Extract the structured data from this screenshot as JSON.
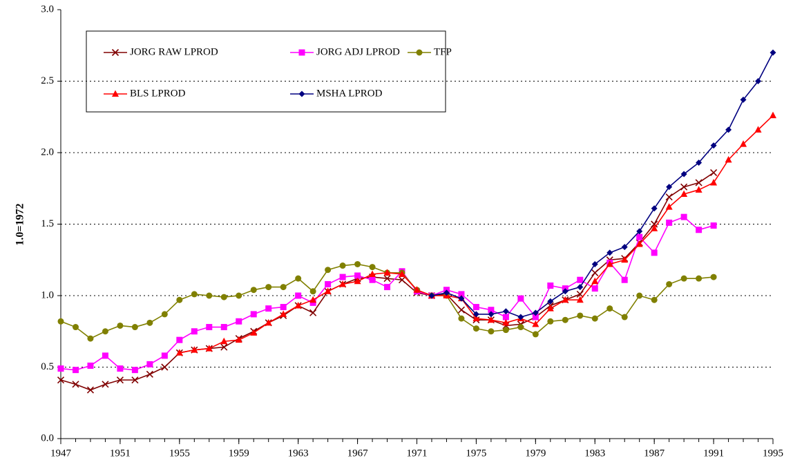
{
  "chart_data": {
    "type": "line",
    "y_label": "1.0=1972",
    "x": [
      1947,
      1948,
      1949,
      1950,
      1951,
      1952,
      1953,
      1954,
      1955,
      1956,
      1957,
      1958,
      1959,
      1960,
      1961,
      1962,
      1963,
      1964,
      1965,
      1966,
      1967,
      1968,
      1969,
      1970,
      1971,
      1972,
      1973,
      1974,
      1975,
      1976,
      1977,
      1978,
      1979,
      1980,
      1981,
      1982,
      1983,
      1984,
      1985,
      1986,
      1987,
      1988,
      1989,
      1990,
      1991,
      1992,
      1993,
      1994,
      1995
    ],
    "xlim": [
      1947,
      1995
    ],
    "xticks": [
      1947,
      1951,
      1955,
      1959,
      1963,
      1967,
      1971,
      1975,
      1979,
      1983,
      1987,
      1991,
      1995
    ],
    "ylim": [
      0,
      3
    ],
    "yticks": [
      {
        "value": 0,
        "label": "0.0"
      },
      {
        "value": 0.5,
        "label": "0.5"
      },
      {
        "value": 1,
        "label": "1.0"
      },
      {
        "value": 1.5,
        "label": "1.5"
      },
      {
        "value": 2,
        "label": "2.0"
      },
      {
        "value": 2.5,
        "label": "2.5"
      },
      {
        "value": 3,
        "label": "3.0"
      }
    ],
    "grid": true,
    "series": [
      {
        "name": "JORG RAW LPROD",
        "color": "#800000",
        "marker": "x",
        "values": [
          0.41,
          0.38,
          0.34,
          0.38,
          0.41,
          0.41,
          0.45,
          0.5,
          0.6,
          0.62,
          0.63,
          0.64,
          0.7,
          0.75,
          0.81,
          0.86,
          0.93,
          0.88,
          1.03,
          1.08,
          1.12,
          1.13,
          1.12,
          1.11,
          1.02,
          1.0,
          1.01,
          0.9,
          0.83,
          0.83,
          0.79,
          0.8,
          0.85,
          0.93,
          0.97,
          1.01,
          1.16,
          1.25,
          1.26,
          1.37,
          1.5,
          1.69,
          1.76,
          1.79,
          1.86,
          null,
          null,
          null,
          null
        ]
      },
      {
        "name": "JORG ADJ LPROD",
        "color": "#ff00ff",
        "marker": "square",
        "values": [
          0.49,
          0.48,
          0.51,
          0.58,
          0.49,
          0.48,
          0.52,
          0.58,
          0.69,
          0.75,
          0.78,
          0.78,
          0.82,
          0.87,
          0.91,
          0.92,
          1.0,
          0.95,
          1.08,
          1.13,
          1.14,
          1.11,
          1.06,
          1.17,
          1.03,
          1.0,
          1.04,
          1.01,
          0.92,
          0.9,
          0.85,
          0.98,
          0.85,
          1.07,
          1.05,
          1.11,
          1.05,
          1.23,
          1.11,
          1.41,
          1.3,
          1.51,
          1.55,
          1.46,
          1.49,
          null,
          null,
          null,
          null
        ]
      },
      {
        "name": "TFP",
        "color": "#808000",
        "marker": "circle",
        "values": [
          0.82,
          0.78,
          0.7,
          0.75,
          0.79,
          0.78,
          0.81,
          0.87,
          0.97,
          1.01,
          1.0,
          0.99,
          1.0,
          1.04,
          1.06,
          1.06,
          1.12,
          1.03,
          1.18,
          1.21,
          1.22,
          1.2,
          1.16,
          1.16,
          1.04,
          1.0,
          1.0,
          0.84,
          0.77,
          0.75,
          0.76,
          0.78,
          0.73,
          0.82,
          0.83,
          0.86,
          0.84,
          0.91,
          0.85,
          1.0,
          0.97,
          1.08,
          1.12,
          1.12,
          1.13,
          null,
          null,
          null,
          null
        ]
      },
      {
        "name": "BLS LPROD",
        "color": "#ff0000",
        "marker": "triangle",
        "values": [
          null,
          null,
          null,
          null,
          null,
          null,
          null,
          null,
          0.6,
          0.62,
          0.63,
          0.68,
          0.69,
          0.74,
          0.81,
          0.87,
          0.93,
          0.97,
          1.03,
          1.08,
          1.1,
          1.15,
          1.16,
          1.15,
          1.04,
          1.0,
          1.0,
          0.98,
          0.84,
          0.83,
          0.81,
          0.84,
          0.8,
          0.91,
          0.97,
          0.97,
          1.1,
          1.22,
          1.25,
          1.36,
          1.47,
          1.62,
          1.71,
          1.74,
          1.79,
          1.95,
          2.06,
          2.16,
          2.26
        ]
      },
      {
        "name": "MSHA LPROD",
        "color": "#000080",
        "marker": "diamond",
        "values": [
          null,
          null,
          null,
          null,
          null,
          null,
          null,
          null,
          null,
          null,
          null,
          null,
          null,
          null,
          null,
          null,
          null,
          null,
          null,
          null,
          null,
          null,
          null,
          null,
          null,
          1.0,
          1.02,
          0.98,
          0.87,
          0.87,
          0.89,
          0.85,
          0.88,
          0.96,
          1.03,
          1.06,
          1.22,
          1.3,
          1.34,
          1.45,
          1.61,
          1.76,
          1.85,
          1.93,
          2.05,
          2.16,
          2.37,
          2.5,
          2.7
        ]
      }
    ]
  }
}
